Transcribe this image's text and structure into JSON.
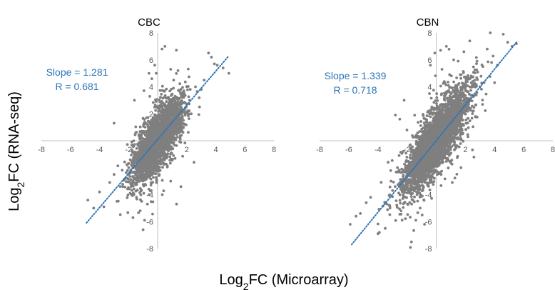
{
  "figure": {
    "ylabel": {
      "pre": "Log",
      "sub": "2",
      "post": "FC (RNA-seq)"
    },
    "xlabel": {
      "pre": "Log",
      "sub": "2",
      "post": "FC (Microarray)"
    }
  },
  "colors": {
    "points": "#7f7f7f",
    "trendline": "#2e75b6",
    "axis": "#bfbfbf",
    "annotation": "#2e75b6"
  },
  "chart_data": [
    {
      "type": "scatter",
      "title": "CBC",
      "xlim": [
        -8,
        8
      ],
      "ylim": [
        -8,
        8
      ],
      "xticks": [
        -8,
        -6,
        -4,
        -2,
        0,
        2,
        4,
        6,
        8
      ],
      "yticks": [
        -8,
        -6,
        -4,
        -2,
        0,
        2,
        4,
        6,
        8
      ],
      "slope_label": "Slope = 1.281",
      "r_label": "R = 0.681",
      "slope": 1.281,
      "r": 0.681,
      "trendline": {
        "x": [
          -4.9,
          4.9
        ],
        "y": [
          -6.1,
          6.3
        ]
      },
      "n_points": 2600,
      "point_spread_x": 0.85,
      "point_noise_y": 1.0,
      "points": [
        [
          -4.8,
          -4.4
        ],
        [
          -4.4,
          -5.0
        ],
        [
          -4.0,
          -3.8
        ],
        [
          -3.7,
          -4.9
        ],
        [
          -3.3,
          -3.1
        ],
        [
          -3.0,
          -2.5
        ],
        [
          -2.8,
          -4.5
        ],
        [
          -2.4,
          -3.4
        ],
        [
          -2.1,
          -1.8
        ],
        [
          -1.7,
          -5.7
        ],
        [
          -1.2,
          -5.2
        ],
        [
          -1.0,
          -6.6
        ],
        [
          -0.9,
          -5.9
        ],
        [
          -0.7,
          -4.7
        ],
        [
          -0.6,
          5.0
        ],
        [
          -0.4,
          4.6
        ],
        [
          -0.2,
          5.6
        ],
        [
          -0.1,
          5.0
        ],
        [
          0.3,
          6.8
        ],
        [
          0.5,
          7.0
        ],
        [
          0.9,
          5.3
        ],
        [
          1.1,
          4.5
        ],
        [
          1.4,
          5.2
        ],
        [
          1.8,
          3.7
        ],
        [
          2.2,
          3.0
        ],
        [
          2.6,
          4.0
        ],
        [
          3.0,
          3.8
        ],
        [
          3.2,
          4.5
        ],
        [
          3.5,
          6.5
        ],
        [
          3.7,
          6.2
        ],
        [
          3.9,
          5.7
        ],
        [
          4.1,
          5.6
        ],
        [
          4.5,
          5.4
        ],
        [
          4.9,
          5.0
        ],
        [
          2.5,
          -1.6
        ],
        [
          1.6,
          -3.4
        ],
        [
          0.9,
          -3.0
        ],
        [
          -3.0,
          1.3
        ],
        [
          -1.6,
          3.0
        ],
        [
          1.3,
          -4.7
        ]
      ]
    },
    {
      "type": "scatter",
      "title": "CBN",
      "xlim": [
        -8,
        8
      ],
      "ylim": [
        -8,
        8
      ],
      "xticks": [
        -8,
        -6,
        -4,
        -2,
        0,
        2,
        4,
        6,
        8
      ],
      "yticks": [
        -8,
        -6,
        -4,
        -2,
        0,
        2,
        4,
        6,
        8
      ],
      "slope_label": "Slope = 1.339",
      "r_label": "R = 0.718",
      "slope": 1.339,
      "r": 0.718,
      "trendline": {
        "x": [
          -5.8,
          5.5
        ],
        "y": [
          -7.7,
          7.3
        ]
      },
      "n_points": 3400,
      "point_spread_x": 1.1,
      "point_noise_y": 1.05,
      "points": [
        [
          -5.9,
          -6.2
        ],
        [
          -5.5,
          -5.6
        ],
        [
          -5.2,
          -5.4
        ],
        [
          -4.8,
          -4.6
        ],
        [
          -4.5,
          -4.2
        ],
        [
          -4.0,
          -6.9
        ],
        [
          -3.9,
          -6.8
        ],
        [
          -3.5,
          -6.5
        ],
        [
          -3.1,
          -3.0
        ],
        [
          -2.8,
          1.9
        ],
        [
          -2.5,
          1.6
        ],
        [
          -2.2,
          3.0
        ],
        [
          -2.0,
          -2.6
        ],
        [
          -1.7,
          -7.5
        ],
        [
          -1.4,
          -5.9
        ],
        [
          -1.1,
          -5.0
        ],
        [
          -0.8,
          -6.2
        ],
        [
          -0.4,
          5.6
        ],
        [
          -0.1,
          6.5
        ],
        [
          0.3,
          6.7
        ],
        [
          0.7,
          7.0
        ],
        [
          1.2,
          6.0
        ],
        [
          1.5,
          5.9
        ],
        [
          1.9,
          6.6
        ],
        [
          2.3,
          7.4
        ],
        [
          2.8,
          5.9
        ],
        [
          3.2,
          5.5
        ],
        [
          3.5,
          6.8
        ],
        [
          3.8,
          5.8
        ],
        [
          4.2,
          5.6
        ],
        [
          4.6,
          7.9
        ],
        [
          4.9,
          7.3
        ],
        [
          5.2,
          7.0
        ],
        [
          5.5,
          7.2
        ],
        [
          4.0,
          4.3
        ],
        [
          3.0,
          4.0
        ],
        [
          2.4,
          4.8
        ],
        [
          1.7,
          -2.0
        ],
        [
          1.1,
          -3.1
        ],
        [
          -3.3,
          -1.6
        ]
      ]
    }
  ]
}
